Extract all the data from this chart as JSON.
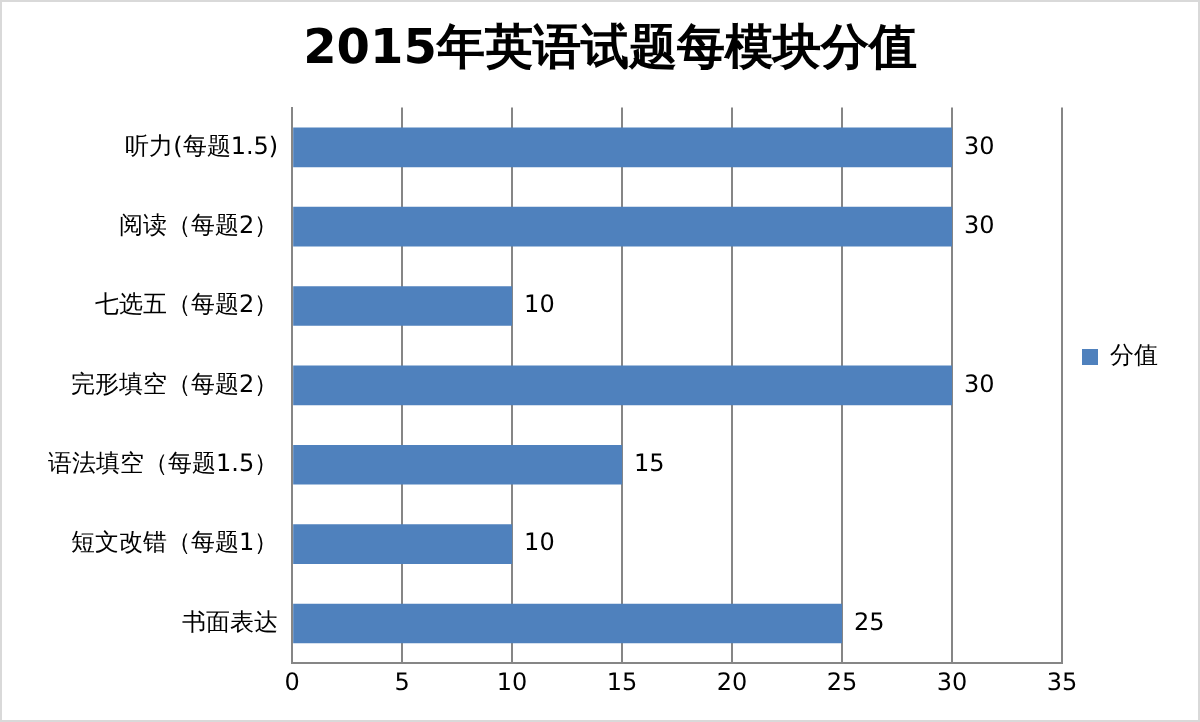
{
  "chart_data": {
    "type": "bar",
    "orientation": "horizontal",
    "title": "2015年英语试题每模块分值",
    "categories": [
      "听力(每题1.5)",
      "阅读（每题2）",
      "七选五（每题2）",
      "完形填空（每题2）",
      "语法填空（每题1.5）",
      "短文改错（每题1）",
      "书面表达"
    ],
    "series": [
      {
        "name": "分值",
        "color": "#4f81bd",
        "values": [
          30,
          30,
          10,
          30,
          15,
          10,
          25
        ]
      }
    ],
    "xlim": [
      0,
      35
    ],
    "xticks": [
      0,
      5,
      10,
      15,
      20,
      25,
      30,
      35
    ],
    "grid": "x",
    "legend": "right",
    "data_labels": true
  }
}
